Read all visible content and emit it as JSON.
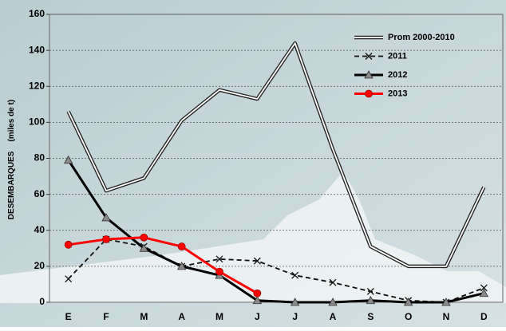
{
  "chart_data": {
    "type": "line",
    "y_label": "DESEMBARQUES",
    "y_label_unit": "(miles de t)",
    "categories": [
      "E",
      "F",
      "M",
      "A",
      "M",
      "J",
      "J",
      "A",
      "S",
      "O",
      "N",
      "D"
    ],
    "series": [
      {
        "name": "Prom 2000-2010",
        "color": "#222222",
        "style": "double",
        "marker": "none",
        "values": [
          106,
          62,
          69,
          101,
          118,
          113,
          144,
          85,
          31,
          20,
          20,
          64
        ]
      },
      {
        "name": "2011",
        "color": "#111111",
        "style": "dashed",
        "marker": "x",
        "values": [
          13,
          35,
          31,
          20,
          24,
          23,
          15,
          11,
          6,
          1,
          0,
          8
        ]
      },
      {
        "name": "2012",
        "color": "#000000",
        "style": "solid",
        "marker": "triangle",
        "values": [
          79,
          47,
          30,
          20,
          15,
          1,
          0,
          0,
          1,
          0,
          0,
          5
        ]
      },
      {
        "name": "2013",
        "color": "#ff0000",
        "style": "solid",
        "marker": "circle",
        "values": [
          32,
          35,
          36,
          31,
          17,
          5,
          null,
          null,
          null,
          null,
          null,
          null
        ]
      }
    ],
    "ylim": [
      0,
      160
    ],
    "yticks": [
      0,
      20,
      40,
      60,
      80,
      100,
      120,
      140,
      160
    ],
    "grid": true,
    "legend": "top-right"
  }
}
